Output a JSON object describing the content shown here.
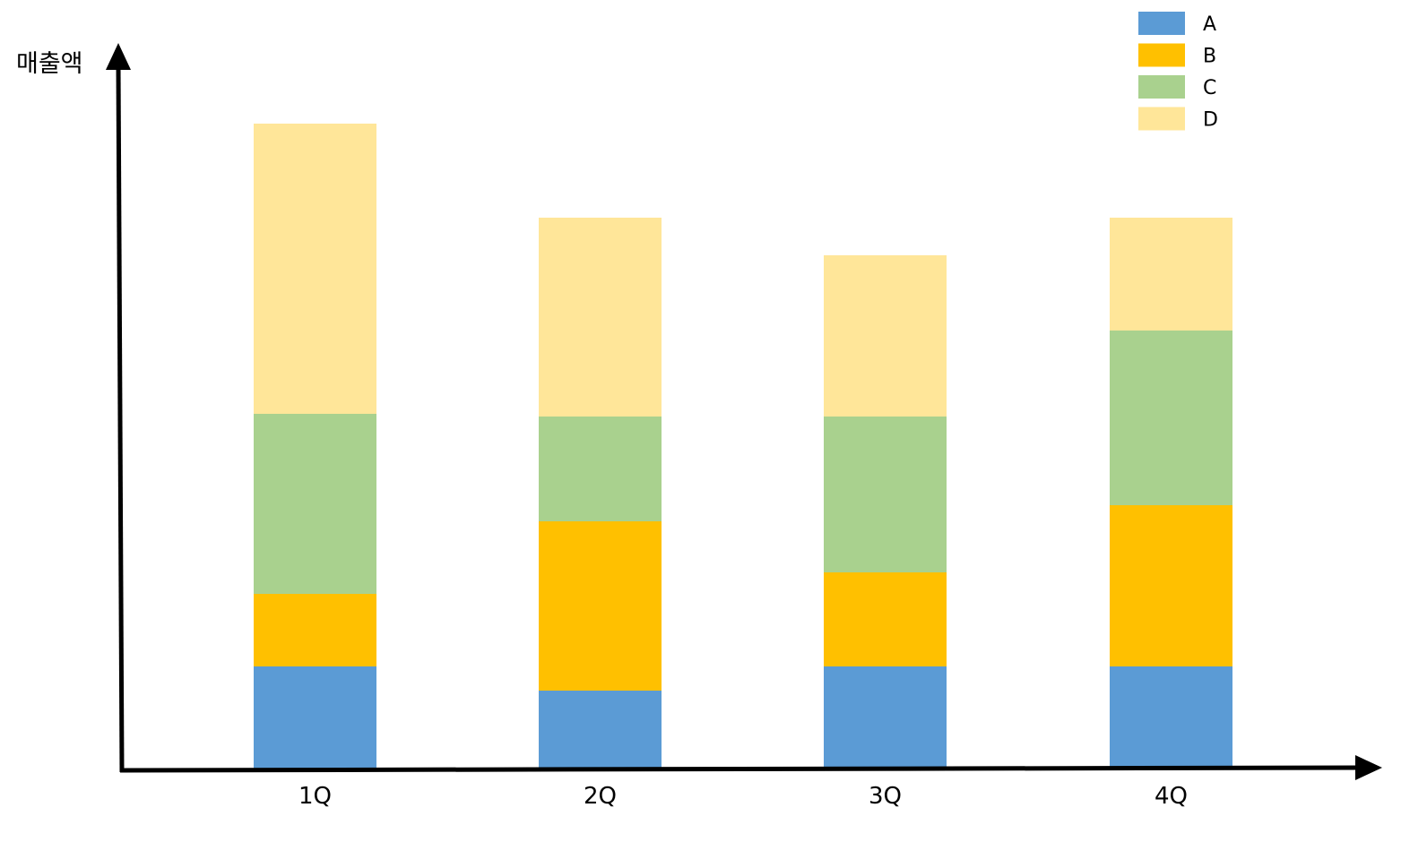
{
  "chart_data": {
    "type": "bar",
    "stacked": true,
    "title": "",
    "ylabel": "매출액",
    "xlabel": "",
    "categories": [
      "1Q",
      "2Q",
      "3Q",
      "4Q"
    ],
    "series": [
      {
        "name": "A",
        "color": "#5B9BD5",
        "values": [
          1.9,
          1.45,
          1.9,
          1.9
        ]
      },
      {
        "name": "B",
        "color": "#FFC000",
        "values": [
          1.35,
          3.15,
          1.75,
          3.0
        ]
      },
      {
        "name": "C",
        "color": "#A9D18E",
        "values": [
          3.35,
          1.95,
          2.9,
          3.25
        ]
      },
      {
        "name": "D",
        "color": "#FFE699",
        "values": [
          5.4,
          3.7,
          3.0,
          2.1
        ]
      }
    ],
    "ylim": [
      0,
      13.5
    ],
    "grid": false,
    "legend": "top-right",
    "axis_color": "#000000"
  }
}
